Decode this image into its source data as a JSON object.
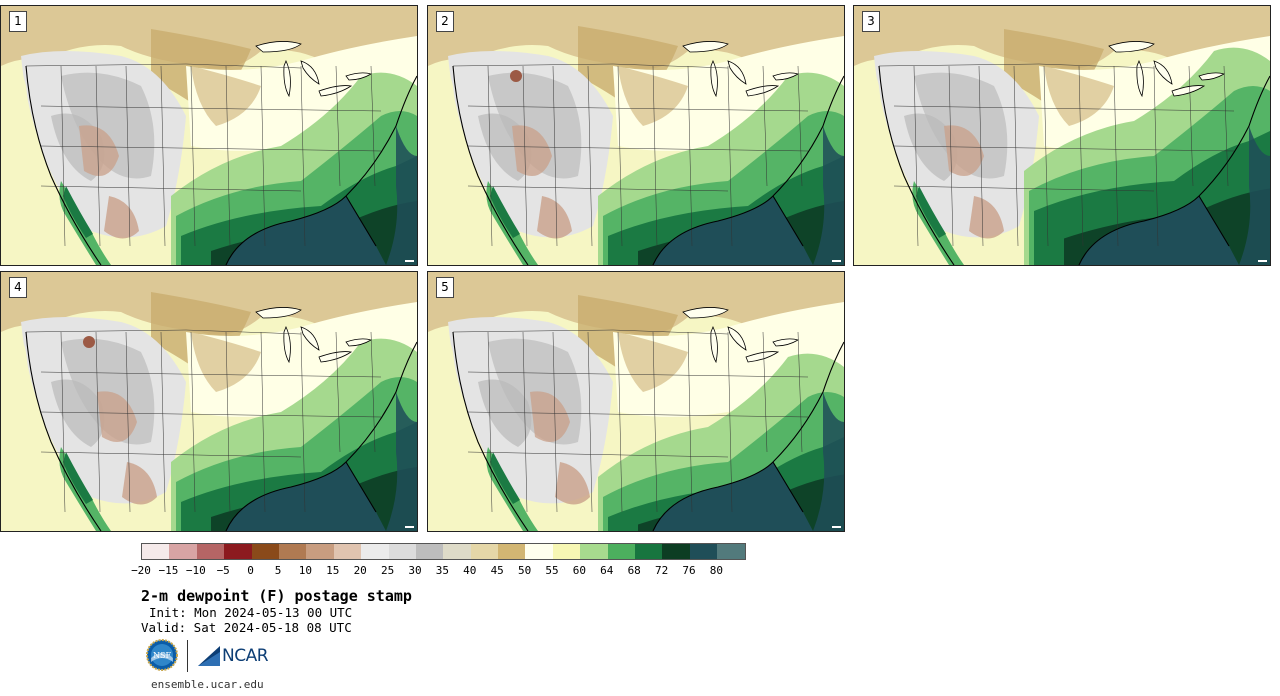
{
  "panels": [
    {
      "label": "1",
      "variant": 1
    },
    {
      "label": "2",
      "variant": 2
    },
    {
      "label": "3",
      "variant": 3
    },
    {
      "label": "4",
      "variant": 4
    },
    {
      "label": "5",
      "variant": 5
    }
  ],
  "colorbar": {
    "colors": [
      "#f5eaea",
      "#d8a4a4",
      "#b56565",
      "#8c1a1f",
      "#8a4a1a",
      "#b07a52",
      "#c89d80",
      "#e0c4b0",
      "#ebebeb",
      "#dcdcdc",
      "#bdbdbd",
      "#dedbc8",
      "#e5d7a8",
      "#d2b673",
      "#ffffee",
      "#f7f7b4",
      "#a7db8e",
      "#4caf5e",
      "#17753f",
      "#0c3d23",
      "#1f4e58",
      "#527a7c"
    ],
    "ticks": [
      "−20",
      "−15",
      "−10",
      "−5",
      "0",
      "5",
      "10",
      "15",
      "20",
      "25",
      "30",
      "35",
      "40",
      "45",
      "50",
      "55",
      "60",
      "64",
      "68",
      "72",
      "76",
      "80"
    ]
  },
  "title": "2-m dewpoint (F) postage stamp",
  "init": "Init: Mon 2024-05-13 00 UTC",
  "valid": "Valid: Sat 2024-05-18 08 UTC",
  "logos": {
    "nsf": "NSF",
    "ncar": "NCAR"
  },
  "site": "ensemble.ucar.edu"
}
